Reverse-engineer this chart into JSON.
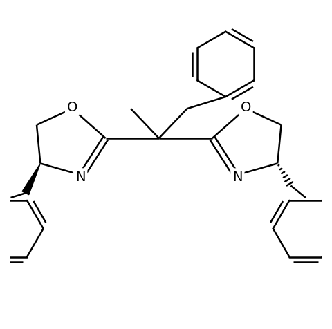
{
  "background": "#ffffff",
  "line_color": "#000000",
  "line_width": 1.8,
  "fig_width": 4.81,
  "fig_height": 4.77,
  "dpi": 100,
  "label_fontsize": 14,
  "xlim": [
    -2.0,
    2.2
  ],
  "ylim": [
    -2.2,
    2.2
  ]
}
